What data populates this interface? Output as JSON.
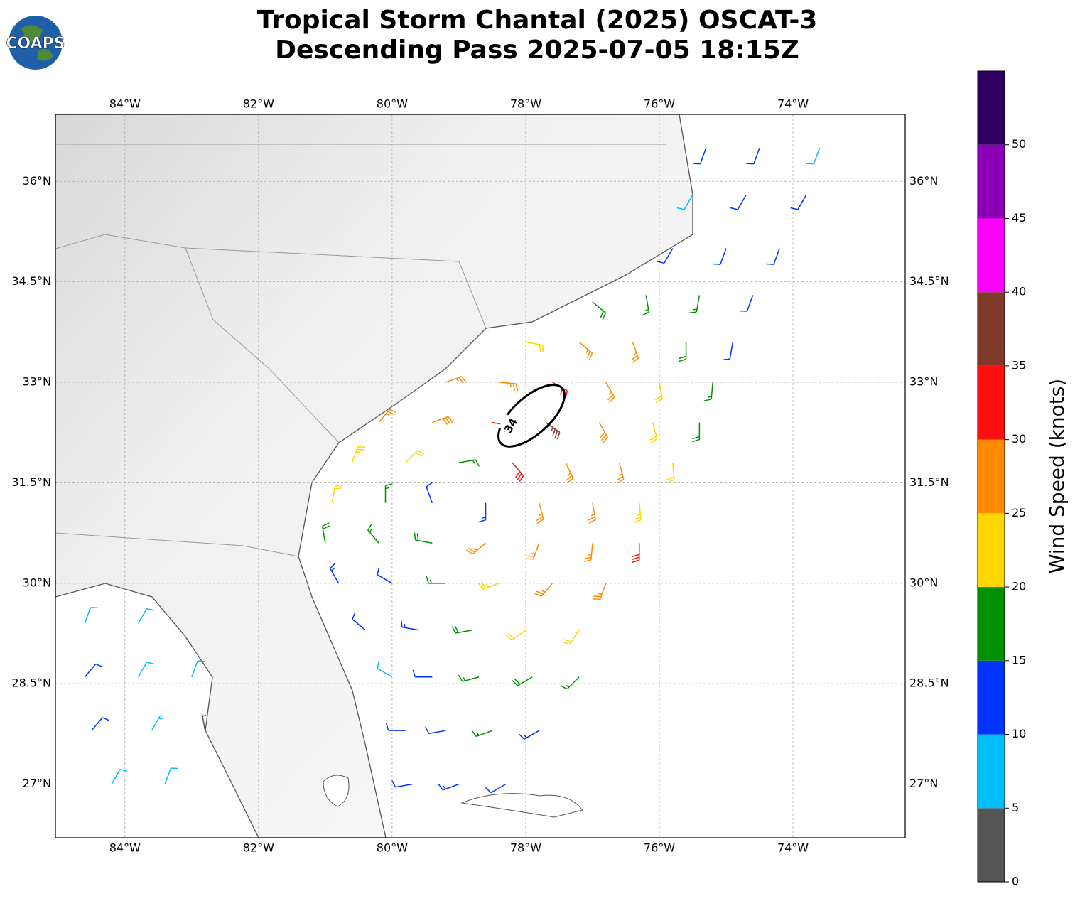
{
  "logo": "COAPS",
  "title": [
    "Tropical Storm Chantal (2025) OSCAT-3",
    "Descending Pass 2025-07-05 18:15Z"
  ],
  "map": {
    "xlim": [
      -85.04,
      -72.32
    ],
    "ylim": [
      26.2,
      37.0
    ],
    "xticks": [
      {
        "value": -84,
        "label": "84°W"
      },
      {
        "value": -82,
        "label": "82°W"
      },
      {
        "value": -80,
        "label": "80°W"
      },
      {
        "value": -78,
        "label": "78°W"
      },
      {
        "value": -76,
        "label": "76°W"
      },
      {
        "value": -74,
        "label": "74°W"
      }
    ],
    "yticks": [
      {
        "value": 27,
        "label": "27°N"
      },
      {
        "value": 28.5,
        "label": "28.5°N"
      },
      {
        "value": 30,
        "label": "30°N"
      },
      {
        "value": 31.5,
        "label": "31.5°N"
      },
      {
        "value": 33,
        "label": "33°N"
      },
      {
        "value": 34.5,
        "label": "34.5°N"
      },
      {
        "value": 36,
        "label": "36°N"
      }
    ]
  },
  "contour": {
    "level": 34
  },
  "colorbar": {
    "label": "Wind Speed (knots)",
    "bounds": [
      0,
      5,
      10,
      15,
      20,
      25,
      30,
      35,
      40,
      45,
      50,
      55
    ],
    "colors": [
      "#555555",
      "#00bfff",
      "#0033ff",
      "#009000",
      "#ffd700",
      "#ff8c00",
      "#ff1010",
      "#7f3a2a",
      "#ff00ff",
      "#8b00b4",
      "#2e0062"
    ],
    "ticks": [
      0,
      5,
      10,
      15,
      20,
      25,
      30,
      35,
      40,
      45,
      50
    ]
  },
  "barbs": [
    [
      -75.3,
      36.5,
      12,
      200
    ],
    [
      -74.5,
      36.5,
      12,
      200
    ],
    [
      -73.6,
      36.5,
      8,
      200
    ],
    [
      -75.5,
      35.8,
      8,
      210
    ],
    [
      -74.7,
      35.8,
      12,
      210
    ],
    [
      -73.8,
      35.8,
      10,
      210
    ],
    [
      -75.8,
      35.0,
      12,
      210
    ],
    [
      -75.0,
      35.0,
      12,
      200
    ],
    [
      -74.2,
      35.0,
      10,
      200
    ],
    [
      -77.0,
      34.2,
      18,
      130
    ],
    [
      -76.2,
      34.3,
      15,
      170
    ],
    [
      -75.4,
      34.3,
      15,
      190
    ],
    [
      -74.6,
      34.3,
      12,
      200
    ],
    [
      -78.0,
      33.6,
      22,
      100
    ],
    [
      -77.2,
      33.6,
      27,
      130
    ],
    [
      -76.4,
      33.6,
      25,
      160
    ],
    [
      -75.6,
      33.6,
      18,
      180
    ],
    [
      -74.9,
      33.6,
      12,
      190
    ],
    [
      -79.2,
      33.0,
      26,
      70
    ],
    [
      -78.4,
      33.0,
      27,
      95
    ],
    [
      -77.6,
      33.0,
      32,
      120
    ],
    [
      -76.8,
      33.0,
      27,
      150
    ],
    [
      -76.0,
      33.0,
      20,
      170
    ],
    [
      -75.2,
      33.0,
      15,
      185
    ],
    [
      -80.2,
      32.4,
      25,
      40
    ],
    [
      -79.4,
      32.4,
      28,
      70
    ],
    [
      -78.5,
      32.4,
      32,
      100
    ],
    [
      -77.7,
      32.4,
      36,
      125
    ],
    [
      -76.9,
      32.4,
      28,
      150
    ],
    [
      -76.1,
      32.4,
      22,
      165
    ],
    [
      -75.4,
      32.4,
      18,
      180
    ],
    [
      -80.6,
      31.8,
      24,
      20
    ],
    [
      -79.8,
      31.8,
      20,
      45
    ],
    [
      -79.0,
      31.8,
      17,
      80
    ],
    [
      -78.2,
      31.8,
      31,
      140
    ],
    [
      -77.4,
      31.8,
      27,
      155
    ],
    [
      -76.6,
      31.8,
      25,
      165
    ],
    [
      -75.8,
      31.8,
      22,
      175
    ],
    [
      -80.9,
      31.2,
      20,
      10
    ],
    [
      -80.1,
      31.2,
      17,
      0
    ],
    [
      -79.4,
      31.2,
      12,
      340
    ],
    [
      -78.6,
      31.2,
      14,
      180
    ],
    [
      -77.8,
      31.2,
      26,
      165
    ],
    [
      -77.0,
      31.2,
      26,
      170
    ],
    [
      -76.3,
      31.2,
      24,
      175
    ],
    [
      -81.0,
      30.6,
      18,
      350
    ],
    [
      -80.2,
      30.6,
      15,
      320
    ],
    [
      -79.4,
      30.6,
      18,
      280
    ],
    [
      -78.6,
      30.6,
      25,
      230
    ],
    [
      -77.8,
      30.6,
      26,
      200
    ],
    [
      -77.0,
      30.6,
      26,
      185
    ],
    [
      -76.3,
      30.6,
      30,
      180
    ],
    [
      -80.8,
      30.0,
      14,
      330
    ],
    [
      -80.0,
      30.0,
      12,
      300
    ],
    [
      -79.2,
      30.0,
      17,
      270
    ],
    [
      -78.4,
      30.0,
      24,
      250
    ],
    [
      -77.6,
      30.0,
      26,
      220
    ],
    [
      -76.8,
      30.0,
      26,
      200
    ],
    [
      -80.4,
      29.3,
      12,
      310
    ],
    [
      -79.6,
      29.3,
      14,
      280
    ],
    [
      -78.8,
      29.3,
      18,
      260
    ],
    [
      -78.0,
      29.3,
      22,
      235
    ],
    [
      -77.2,
      29.3,
      22,
      215
    ],
    [
      -80.0,
      28.6,
      9,
      300
    ],
    [
      -79.4,
      28.6,
      12,
      270
    ],
    [
      -78.7,
      28.6,
      16,
      255
    ],
    [
      -77.9,
      28.6,
      18,
      240
    ],
    [
      -77.2,
      28.6,
      17,
      225
    ],
    [
      -79.8,
      27.8,
      10,
      270
    ],
    [
      -79.2,
      27.8,
      12,
      260
    ],
    [
      -78.5,
      27.8,
      17,
      250
    ],
    [
      -77.8,
      27.8,
      14,
      240
    ],
    [
      -79.7,
      27.0,
      12,
      260
    ],
    [
      -79.0,
      27.0,
      14,
      250
    ],
    [
      -78.3,
      27.0,
      12,
      240
    ],
    [
      -84.6,
      29.4,
      8,
      20
    ],
    [
      -83.8,
      29.4,
      8,
      30
    ],
    [
      -84.6,
      28.6,
      10,
      40
    ],
    [
      -83.8,
      28.6,
      8,
      30
    ],
    [
      -83.0,
      28.6,
      8,
      20
    ],
    [
      -84.5,
      27.8,
      12,
      40
    ],
    [
      -83.6,
      27.8,
      7,
      30
    ],
    [
      -82.8,
      27.8,
      4,
      350
    ],
    [
      -84.2,
      27.0,
      9,
      30
    ],
    [
      -83.4,
      27.0,
      8,
      20
    ]
  ]
}
